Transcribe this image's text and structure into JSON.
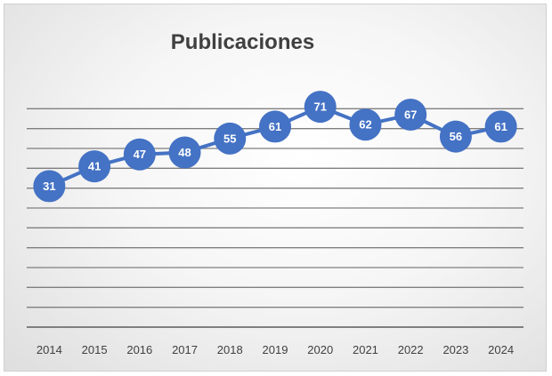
{
  "chart_data": {
    "type": "line",
    "title": "Publicaciones",
    "xlabel": "",
    "ylabel": "",
    "categories": [
      "2014",
      "2015",
      "2016",
      "2017",
      "2018",
      "2019",
      "2020",
      "2021",
      "2022",
      "2023",
      "2024"
    ],
    "series": [
      {
        "values": [
          31,
          41,
          47,
          48,
          55,
          61,
          71,
          62,
          67,
          56,
          61
        ]
      }
    ],
    "ylim": [
      -40,
      80
    ],
    "y_gridlines": [
      -40,
      -30,
      -20,
      -10,
      0,
      10,
      20,
      30,
      40,
      50,
      60,
      70
    ],
    "y_tick_labels_shown": false,
    "grid": true,
    "data_labels": true,
    "legend": "none",
    "colors": {
      "series": "#4472c4",
      "gridline": "#7f7f7f",
      "label_text": "#ffffff",
      "title_text": "#404040"
    }
  }
}
